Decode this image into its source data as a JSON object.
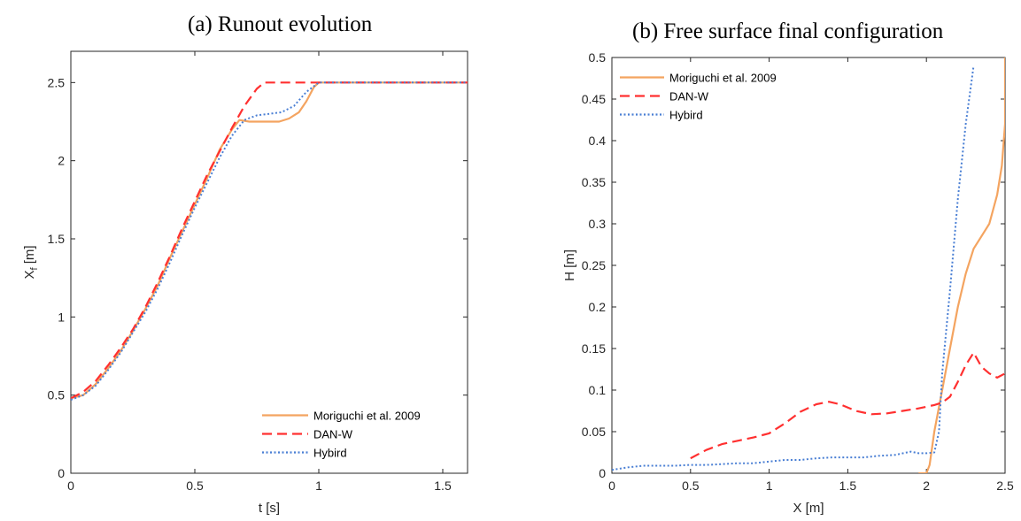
{
  "chart_data": [
    {
      "type": "line",
      "title": "(a) Runout evolution",
      "xlabel": "t [s]",
      "ylabel": "X",
      "ylabel_sub": "f",
      "ylabel_unit": " [m]",
      "xlim": [
        0,
        1.6
      ],
      "ylim": [
        0,
        2.7
      ],
      "xticks": [
        0,
        0.5,
        1,
        1.5
      ],
      "xtick_labels": [
        "0",
        "0.5",
        "1",
        "1.5"
      ],
      "yticks": [
        0,
        0.5,
        1,
        1.5,
        2,
        2.5
      ],
      "ytick_labels": [
        "0",
        "0.5",
        "1",
        "1.5",
        "2",
        "2.5"
      ],
      "grid": false,
      "legend_position": "bottom-right",
      "series": [
        {
          "name": "Moriguchi et al. 2009",
          "color": "#f4a460",
          "style": "solid",
          "x": [
            0,
            0.05,
            0.1,
            0.15,
            0.2,
            0.25,
            0.3,
            0.35,
            0.4,
            0.45,
            0.5,
            0.55,
            0.6,
            0.65,
            0.68,
            0.72,
            0.8,
            0.84,
            0.88,
            0.92,
            0.95,
            0.98,
            1.0,
            1.2,
            1.4,
            1.6
          ],
          "y": [
            0.48,
            0.5,
            0.57,
            0.67,
            0.78,
            0.91,
            1.05,
            1.2,
            1.38,
            1.55,
            1.72,
            1.89,
            2.07,
            2.2,
            2.26,
            2.25,
            2.25,
            2.25,
            2.27,
            2.31,
            2.38,
            2.47,
            2.5,
            2.5,
            2.5,
            2.5
          ]
        },
        {
          "name": "DAN-W",
          "color": "#ff3030",
          "style": "dashed",
          "x": [
            0,
            0.05,
            0.1,
            0.15,
            0.2,
            0.25,
            0.3,
            0.35,
            0.4,
            0.45,
            0.5,
            0.55,
            0.6,
            0.65,
            0.7,
            0.75,
            0.78,
            0.8,
            1.0,
            1.2,
            1.4,
            1.6
          ],
          "y": [
            0.48,
            0.52,
            0.59,
            0.69,
            0.8,
            0.92,
            1.06,
            1.22,
            1.39,
            1.57,
            1.74,
            1.91,
            2.06,
            2.21,
            2.35,
            2.46,
            2.5,
            2.5,
            2.5,
            2.5,
            2.5,
            2.5
          ]
        },
        {
          "name": "Hybird",
          "color": "#4a7fd4",
          "style": "dotted",
          "x": [
            0,
            0.05,
            0.1,
            0.15,
            0.2,
            0.25,
            0.3,
            0.35,
            0.4,
            0.45,
            0.5,
            0.55,
            0.6,
            0.65,
            0.7,
            0.75,
            0.8,
            0.85,
            0.9,
            0.95,
            1.0,
            1.2,
            1.4,
            1.6
          ],
          "y": [
            0.47,
            0.5,
            0.56,
            0.66,
            0.77,
            0.9,
            1.03,
            1.18,
            1.35,
            1.53,
            1.7,
            1.86,
            2.02,
            2.16,
            2.26,
            2.29,
            2.3,
            2.31,
            2.35,
            2.44,
            2.5,
            2.5,
            2.5,
            2.5
          ]
        }
      ]
    },
    {
      "type": "line",
      "title": "(b) Free surface final configuration",
      "xlabel": "X [m]",
      "ylabel": "H [m]",
      "xlim": [
        0,
        2.5
      ],
      "ylim": [
        0,
        0.5
      ],
      "xticks": [
        0,
        0.5,
        1,
        1.5,
        2,
        2.5
      ],
      "xtick_labels": [
        "0",
        "0.5",
        "1",
        "1.5",
        "2",
        "2.5"
      ],
      "yticks": [
        0,
        0.05,
        0.1,
        0.15,
        0.2,
        0.25,
        0.3,
        0.35,
        0.4,
        0.45,
        0.5
      ],
      "ytick_labels": [
        "0",
        "0.05",
        "0.1",
        "0.15",
        "0.2",
        "0.25",
        "0.3",
        "0.35",
        "0.4",
        "0.45",
        "0.5"
      ],
      "grid": false,
      "legend_position": "top-left",
      "series": [
        {
          "name": "Moriguchi et al. 2009",
          "color": "#f4a460",
          "style": "solid",
          "x": [
            1.95,
            2.0,
            2.02,
            2.05,
            2.1,
            2.15,
            2.2,
            2.25,
            2.3,
            2.35,
            2.4,
            2.45,
            2.48,
            2.5,
            2.5
          ],
          "y": [
            0.0,
            0.0,
            0.01,
            0.05,
            0.1,
            0.15,
            0.2,
            0.24,
            0.27,
            0.285,
            0.3,
            0.335,
            0.37,
            0.42,
            0.5
          ]
        },
        {
          "name": "DAN-W",
          "color": "#ff3030",
          "style": "dashed",
          "x": [
            0.5,
            0.6,
            0.7,
            0.8,
            0.9,
            1.0,
            1.1,
            1.2,
            1.3,
            1.38,
            1.45,
            1.55,
            1.65,
            1.75,
            1.85,
            1.95,
            2.0,
            2.05,
            2.1,
            2.15,
            2.2,
            2.25,
            2.3,
            2.35,
            2.4,
            2.45,
            2.5
          ],
          "y": [
            0.018,
            0.028,
            0.035,
            0.039,
            0.043,
            0.048,
            0.06,
            0.074,
            0.083,
            0.086,
            0.083,
            0.075,
            0.071,
            0.072,
            0.075,
            0.078,
            0.08,
            0.082,
            0.085,
            0.092,
            0.11,
            0.13,
            0.145,
            0.128,
            0.12,
            0.115,
            0.12
          ]
        },
        {
          "name": "Hybird",
          "color": "#4a7fd4",
          "style": "dotted",
          "x": [
            0,
            0.1,
            0.2,
            0.3,
            0.4,
            0.5,
            0.6,
            0.7,
            0.8,
            0.9,
            1.0,
            1.1,
            1.2,
            1.3,
            1.4,
            1.5,
            1.6,
            1.7,
            1.8,
            1.9,
            1.95,
            2.0,
            2.05,
            2.08,
            2.1,
            2.15,
            2.2,
            2.25,
            2.3
          ],
          "y": [
            0.004,
            0.007,
            0.009,
            0.009,
            0.009,
            0.01,
            0.01,
            0.011,
            0.012,
            0.012,
            0.014,
            0.016,
            0.016,
            0.018,
            0.019,
            0.019,
            0.019,
            0.021,
            0.022,
            0.026,
            0.024,
            0.024,
            0.025,
            0.05,
            0.12,
            0.22,
            0.33,
            0.42,
            0.49
          ]
        }
      ]
    }
  ]
}
